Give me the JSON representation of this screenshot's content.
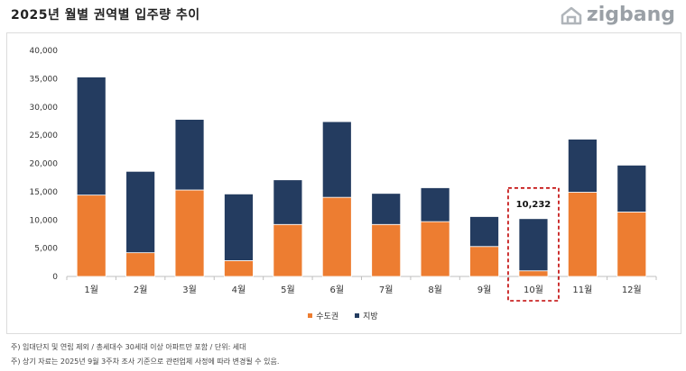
{
  "title": "2025년 월별 권역별 입주량 추이",
  "brand": {
    "name": "zigbang",
    "icon": "house-logo-icon"
  },
  "colors": {
    "metro": "#ed7d31",
    "region": "#243c60",
    "highlight": "#c00000"
  },
  "chart_data": {
    "type": "bar",
    "stacked": true,
    "categories": [
      "1월",
      "2월",
      "3월",
      "4월",
      "5월",
      "6월",
      "7월",
      "8월",
      "9월",
      "10월",
      "11월",
      "12월"
    ],
    "series": [
      {
        "name": "수도권",
        "values": [
          14400,
          4200,
          15300,
          2800,
          9200,
          14000,
          9200,
          9700,
          5300,
          1000,
          14900,
          11400
        ]
      },
      {
        "name": "지방",
        "values": [
          20900,
          14400,
          12500,
          11800,
          7900,
          13400,
          5500,
          6000,
          5300,
          9232,
          9400,
          8300
        ]
      }
    ],
    "yticks": [
      "0",
      "5,000",
      "10,000",
      "15,000",
      "20,000",
      "25,000",
      "30,000",
      "35,000",
      "40,000"
    ],
    "ylim": [
      0,
      40000
    ],
    "grid": false,
    "legend": "bottom",
    "annotations": [
      {
        "category": "10월",
        "label": "10,232",
        "boxed": true
      }
    ]
  },
  "notes": [
    "주) 임대단지 및 연립 제외 / 총세대수 30세대 이상 아파트만 포함 / 단위: 세대",
    "주) 상기 자료는 2025년 9월 3주차 조사 기준으로 관련업체 사정에 따라 변경될 수 있음."
  ]
}
